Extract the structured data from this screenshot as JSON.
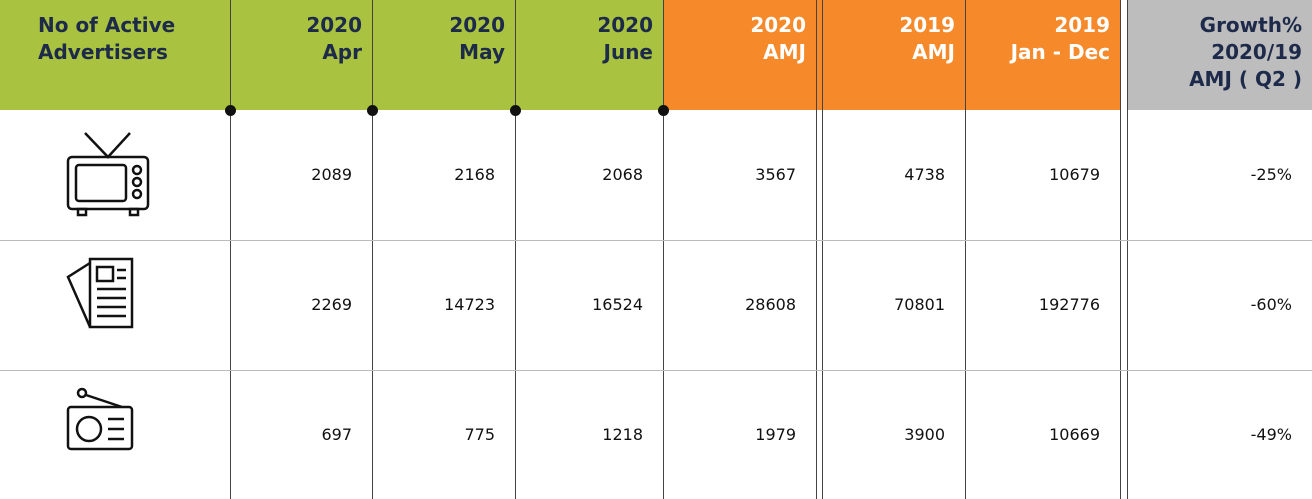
{
  "table": {
    "header": [
      [
        "No of Active",
        "Advertisers"
      ],
      [
        "2020",
        "Apr"
      ],
      [
        "2020",
        "May"
      ],
      [
        "2020",
        "June"
      ],
      [
        "2020",
        "AMJ"
      ],
      [
        "2019",
        "AMJ"
      ],
      [
        "2019",
        "Jan - Dec"
      ],
      [
        "Growth%",
        "2020/19",
        "AMJ ( Q2 )"
      ]
    ],
    "rows": [
      [
        "2089",
        "2168",
        "2068",
        "3567",
        "4738",
        "10679",
        "-25%"
      ],
      [
        "2269",
        "14723",
        "16524",
        "28608",
        "70801",
        "192776",
        "-60%"
      ],
      [
        "697",
        "775",
        "1218",
        "1979",
        "3900",
        "10669",
        "-49%"
      ]
    ]
  }
}
